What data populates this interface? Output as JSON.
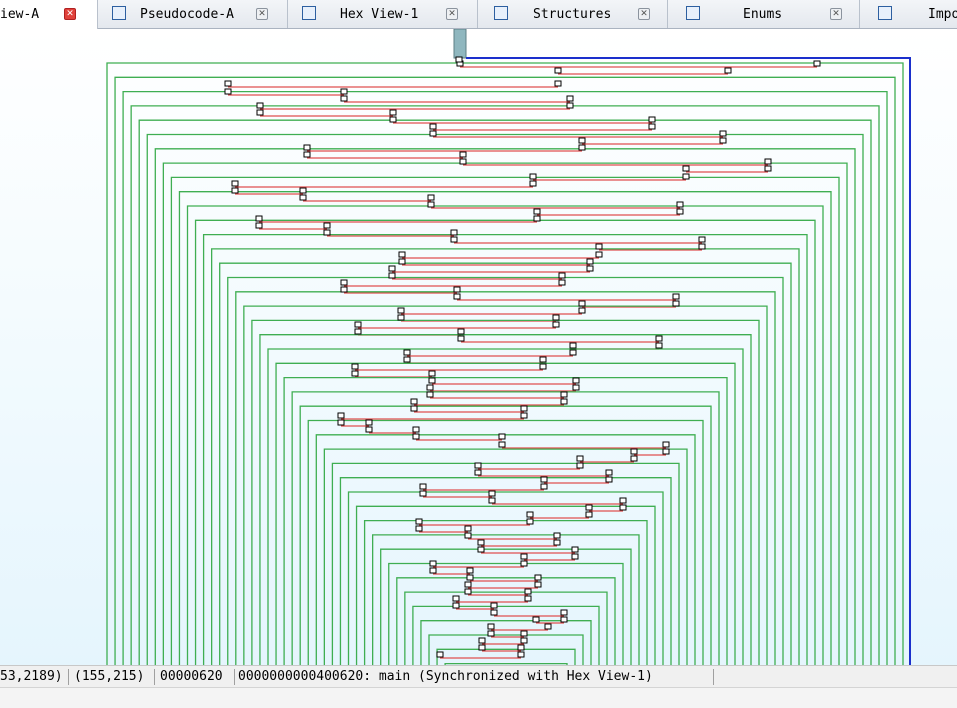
{
  "tabs": [
    {
      "label": "iew-A",
      "icon": "graph-view-icon",
      "active": true
    },
    {
      "label": "Pseudocode-A",
      "icon": "pseudocode-icon",
      "active": false
    },
    {
      "label": "Hex View-1",
      "icon": "hex-view-icon",
      "active": false
    },
    {
      "label": "Structures",
      "icon": "structures-icon",
      "active": false
    },
    {
      "label": "Enums",
      "icon": "enums-icon",
      "active": false
    },
    {
      "label": "Impo",
      "icon": "imports-icon",
      "active": false
    }
  ],
  "status": {
    "coords": "53,2189)",
    "mouse": "(155,215)",
    "offset": "00000620",
    "location": "0000000000400620: main (Synchronized with Hex View-1)"
  },
  "colors": {
    "green_edge": "#3fae52",
    "red_edge": "#e05050",
    "blue_edge": "#1a2fcc",
    "entry_node": "#8fb7bf"
  }
}
